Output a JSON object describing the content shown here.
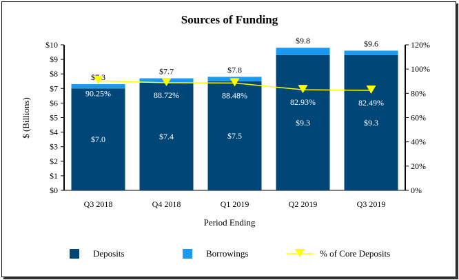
{
  "chart_data": {
    "type": "bar",
    "title": "Sources of Funding",
    "xlabel": "Period Ending",
    "ylabel": "$ (Billions)",
    "ylim": [
      0,
      10
    ],
    "y2lim": [
      0,
      120
    ],
    "yticks": [
      "$0",
      "$1",
      "$2",
      "$3",
      "$4",
      "$5",
      "$6",
      "$7",
      "$8",
      "$9",
      "$10"
    ],
    "y2ticks": [
      "0%",
      "20%",
      "40%",
      "60%",
      "80%",
      "100%",
      "120%"
    ],
    "categories": [
      "Q3 2018",
      "Q4 2018",
      "Q1 2019",
      "Q2 2019",
      "Q3 2019"
    ],
    "series": [
      {
        "name": "Deposits",
        "values": [
          7.0,
          7.4,
          7.5,
          9.3,
          9.3
        ],
        "labels": [
          "$7.0",
          "$7.4",
          "$7.5",
          "$9.3",
          "$9.3"
        ],
        "color": "#004677"
      },
      {
        "name": "Borrowings",
        "values": [
          0.3,
          0.3,
          0.3,
          0.5,
          0.3
        ],
        "color": "#1a9af0"
      },
      {
        "name": "% of Core Deposits",
        "axis": "right",
        "values": [
          90.25,
          88.72,
          88.48,
          82.93,
          82.49
        ],
        "labels": [
          "90.25%",
          "88.72%",
          "88.48%",
          "82.93%",
          "82.49%"
        ],
        "color": "#ffff00"
      }
    ],
    "totals": [
      "$7.3",
      "$7.7",
      "$7.8",
      "$9.8",
      "$9.6"
    ],
    "legend": "bottom",
    "grid": false
  }
}
